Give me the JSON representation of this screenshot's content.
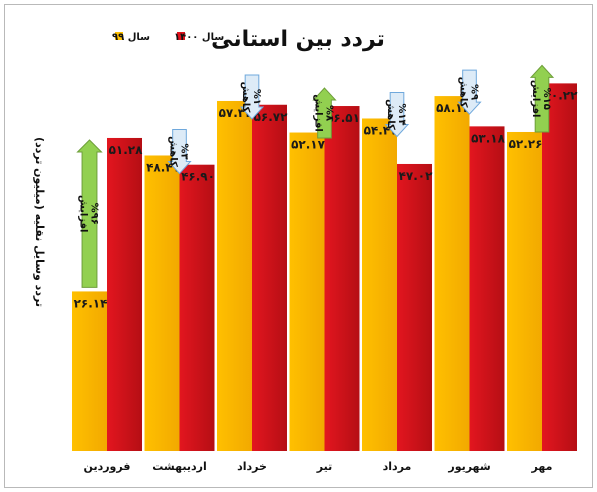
{
  "chart_data": {
    "type": "bar",
    "title": "تردد بین استانی",
    "ylabel": "تردد وسایل نقلیه (میلیون تردد)",
    "categories": [
      "فروردین",
      "اردیبهشت",
      "خرداد",
      "تیر",
      "مرداد",
      "شهریور",
      "مهر"
    ],
    "series": [
      {
        "name": "سال ۹۹",
        "color": "#FFC000",
        "values": [
          26.14,
          48.41,
          57.34,
          52.17,
          54.47,
          58.14,
          52.26
        ],
        "labels": [
          "۲۶.۱۴",
          "۴۸.۴۱",
          "۵۷.۳۴",
          "۵۲.۱۷",
          "۵۴.۴۷",
          "۵۸.۱۴",
          "۵۲.۲۶"
        ]
      },
      {
        "name": "سال ۱۴۰۰",
        "color": "#E0111B",
        "values": [
          51.28,
          46.9,
          56.72,
          56.51,
          47.02,
          53.18,
          60.22
        ],
        "labels": [
          "۵۱.۲۸",
          "۴۶.۹۰",
          "۵۶.۷۲",
          "۵۶.۵۱",
          "۴۷.۰۲",
          "۵۳.۱۸",
          "۶۰.۲۲"
        ]
      }
    ],
    "ylim": [
      0,
      67
    ],
    "grid": false,
    "legend": "top-left",
    "annotations": [
      {
        "category": "فروردین",
        "direction": "up",
        "percent": "%۹۶",
        "label": "افزایش"
      },
      {
        "category": "اردیبهشت",
        "direction": "down",
        "percent": "%۳",
        "label": "کاهش"
      },
      {
        "category": "خرداد",
        "direction": "down",
        "percent": "%۱",
        "label": "کاهش"
      },
      {
        "category": "تیر",
        "direction": "up",
        "percent": "%۸",
        "label": "افزایش"
      },
      {
        "category": "مرداد",
        "direction": "down",
        "percent": "%۱۴",
        "label": "کاهش"
      },
      {
        "category": "شهریور",
        "direction": "down",
        "percent": "%۹",
        "label": "کاهش"
      },
      {
        "category": "مهر",
        "direction": "up",
        "percent": "%۱۵",
        "label": "افزایش"
      }
    ],
    "colors": {
      "increase_arrow": "#92D050",
      "decrease_arrow": "#DDEBF7",
      "decrease_arrow_border": "#6FA8DC"
    }
  }
}
